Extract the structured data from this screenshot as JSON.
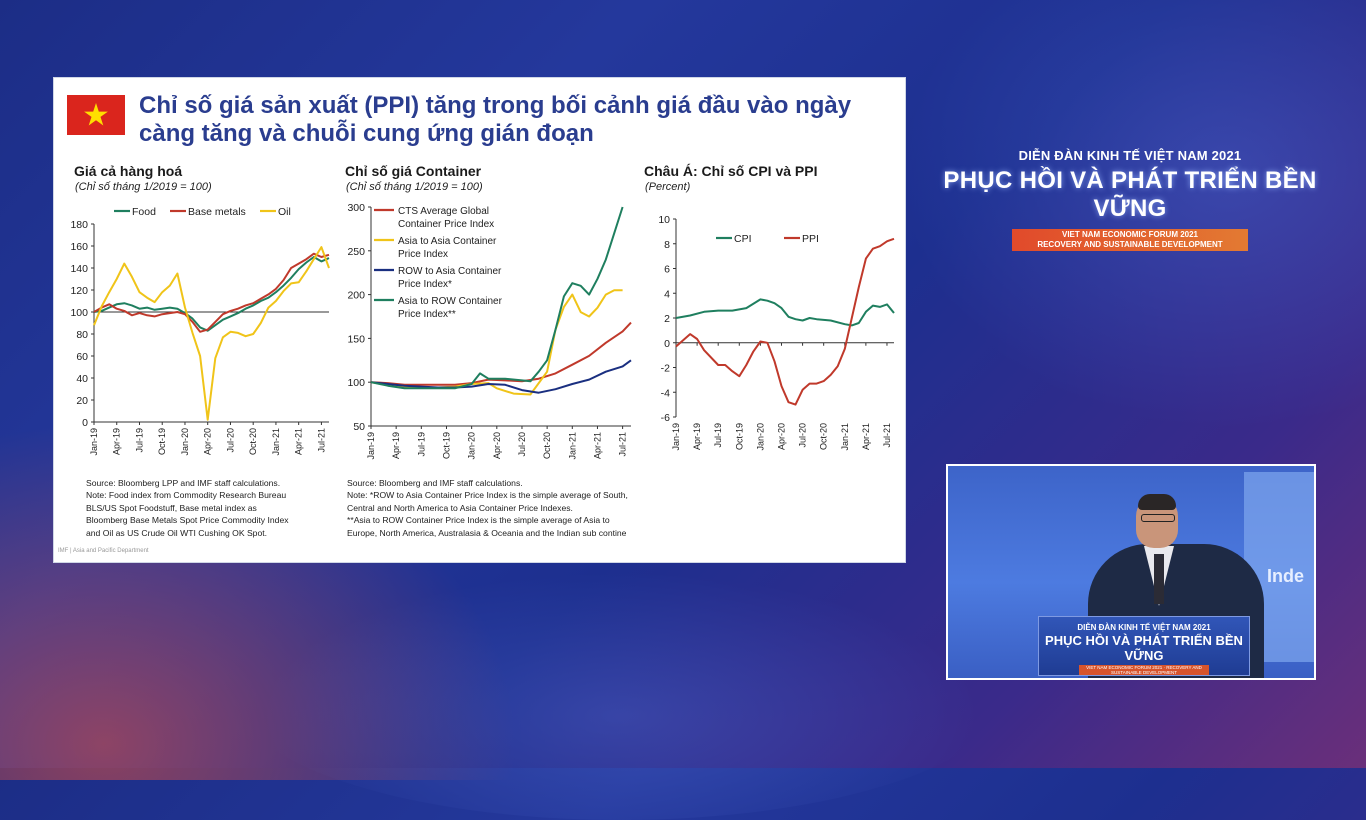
{
  "slide": {
    "title": "Chỉ số giá sản xuất (PPI) tăng trong bối cảnh giá đầu vào ngày càng tăng và chuỗi cung ứng gián đoạn",
    "flag_icon": "vietnam-flag-icon",
    "footer_note": "IMF | Asia and Pacific Department"
  },
  "panels": {
    "commodities": {
      "title": "Giá cả hàng hoá",
      "subtitle": "(Chỉ số tháng 1/2019 = 100)",
      "note": "Source: Bloomberg LPP and IMF staff calculations.\nNote: Food index from Commodity Research Bureau\nBLS/US Spot Foodstuff, Base metal index as\nBloomberg Base Metals Spot Price Commodity Index\nand Oil as US Crude Oil WTI Cushing OK Spot."
    },
    "container": {
      "title": "Chỉ số giá Container",
      "subtitle": "(Chỉ số tháng 1/2019 = 100)",
      "note": "Source: Bloomberg and IMF staff calculations.\nNote: *ROW to Asia Container Price Index is the simple average of South,\nCentral and North America to Asia Container Price Indexes.\n**Asia to ROW Container Price Index is the simple average of Asia to\nEurope, North America, Australasia & Oceania and the Indian sub contine"
    },
    "asia": {
      "title": "Châu Á: Chỉ số CPI và PPI",
      "subtitle": "(Percent)"
    }
  },
  "chart_data": [
    {
      "type": "line",
      "title": "Giá cả hàng hoá",
      "subtitle": "(Chỉ số tháng 1/2019 = 100)",
      "xlabel": "",
      "ylabel": "",
      "x_ticks": [
        "Jan-19",
        "Apr-19",
        "Jul-19",
        "Oct-19",
        "Jan-20",
        "Apr-20",
        "Jul-20",
        "Oct-20",
        "Jan-21",
        "Apr-21",
        "Jul-21"
      ],
      "ylim": [
        0,
        180
      ],
      "y_ticks": [
        0,
        20,
        40,
        60,
        80,
        100,
        120,
        140,
        160,
        180
      ],
      "reference_line": 100,
      "legend": "top-left",
      "grid": false,
      "series": [
        {
          "name": "Food",
          "color": "#1f7f5f",
          "points": [
            [
              0,
              100
            ],
            [
              1,
              101
            ],
            [
              2,
              104
            ],
            [
              3,
              107
            ],
            [
              4,
              108
            ],
            [
              5,
              106
            ],
            [
              6,
              103
            ],
            [
              7,
              104
            ],
            [
              8,
              102
            ],
            [
              9,
              103
            ],
            [
              10,
              104
            ],
            [
              11,
              103
            ],
            [
              12,
              99
            ],
            [
              13,
              94
            ],
            [
              14,
              86
            ],
            [
              15,
              83
            ],
            [
              16,
              88
            ],
            [
              17,
              93
            ],
            [
              18,
              96
            ],
            [
              19,
              99
            ],
            [
              20,
              103
            ],
            [
              21,
              106
            ],
            [
              22,
              110
            ],
            [
              23,
              113
            ],
            [
              24,
              118
            ],
            [
              25,
              124
            ],
            [
              26,
              131
            ],
            [
              27,
              139
            ],
            [
              28,
              145
            ],
            [
              29,
              150
            ],
            [
              30,
              146
            ],
            [
              31,
              149
            ]
          ]
        },
        {
          "name": "Base metals",
          "color": "#c0392b",
          "points": [
            [
              0,
              100
            ],
            [
              1,
              104
            ],
            [
              2,
              107
            ],
            [
              3,
              103
            ],
            [
              4,
              101
            ],
            [
              5,
              97
            ],
            [
              6,
              99
            ],
            [
              7,
              97
            ],
            [
              8,
              96
            ],
            [
              9,
              98
            ],
            [
              10,
              99
            ],
            [
              11,
              100
            ],
            [
              12,
              98
            ],
            [
              13,
              91
            ],
            [
              14,
              82
            ],
            [
              15,
              84
            ],
            [
              16,
              91
            ],
            [
              17,
              98
            ],
            [
              18,
              101
            ],
            [
              19,
              103
            ],
            [
              20,
              106
            ],
            [
              21,
              108
            ],
            [
              22,
              112
            ],
            [
              23,
              116
            ],
            [
              24,
              121
            ],
            [
              25,
              129
            ],
            [
              26,
              140
            ],
            [
              27,
              144
            ],
            [
              28,
              148
            ],
            [
              29,
              153
            ],
            [
              30,
              150
            ],
            [
              31,
              152
            ]
          ]
        },
        {
          "name": "Oil",
          "color": "#f0c419",
          "points": [
            [
              0,
              88
            ],
            [
              1,
              105
            ],
            [
              2,
              118
            ],
            [
              3,
              130
            ],
            [
              4,
              144
            ],
            [
              5,
              132
            ],
            [
              6,
              118
            ],
            [
              7,
              113
            ],
            [
              8,
              109
            ],
            [
              9,
              118
            ],
            [
              10,
              124
            ],
            [
              11,
              135
            ],
            [
              12,
              104
            ],
            [
              13,
              81
            ],
            [
              14,
              60
            ],
            [
              15,
              2
            ],
            [
              16,
              58
            ],
            [
              17,
              77
            ],
            [
              18,
              82
            ],
            [
              19,
              81
            ],
            [
              20,
              78
            ],
            [
              21,
              80
            ],
            [
              22,
              90
            ],
            [
              23,
              104
            ],
            [
              24,
              110
            ],
            [
              25,
              119
            ],
            [
              26,
              126
            ],
            [
              27,
              127
            ],
            [
              28,
              137
            ],
            [
              29,
              148
            ],
            [
              30,
              159
            ],
            [
              31,
              140
            ]
          ]
        }
      ]
    },
    {
      "type": "line",
      "title": "Chỉ số giá Container",
      "subtitle": "(Chỉ số tháng 1/2019 = 100)",
      "xlabel": "",
      "ylabel": "",
      "x_ticks": [
        "Jan-19",
        "Apr-19",
        "Jul-19",
        "Oct-19",
        "Jan-20",
        "Apr-20",
        "Jul-20",
        "Oct-20",
        "Jan-21",
        "Apr-21",
        "Jul-21"
      ],
      "ylim": [
        50,
        300
      ],
      "y_ticks": [
        50,
        100,
        150,
        200,
        250,
        300
      ],
      "legend": "top-left",
      "grid": false,
      "series": [
        {
          "name": "CTS Average Global Container Price Index",
          "color": "#c0392b",
          "points": [
            [
              0,
              100
            ],
            [
              2,
              99
            ],
            [
              4,
              97
            ],
            [
              6,
              97
            ],
            [
              8,
              97
            ],
            [
              10,
              97
            ],
            [
              12,
              99
            ],
            [
              14,
              103
            ],
            [
              16,
              102
            ],
            [
              18,
              101
            ],
            [
              20,
              104
            ],
            [
              22,
              110
            ],
            [
              24,
              120
            ],
            [
              26,
              130
            ],
            [
              28,
              145
            ],
            [
              30,
              158
            ],
            [
              31,
              168
            ]
          ]
        },
        {
          "name": "Asia to Asia Container Price Index",
          "color": "#f0c419",
          "points": [
            [
              0,
              100
            ],
            [
              2,
              97
            ],
            [
              4,
              95
            ],
            [
              6,
              94
            ],
            [
              8,
              94
            ],
            [
              10,
              95
            ],
            [
              12,
              98
            ],
            [
              14,
              99
            ],
            [
              15,
              93
            ],
            [
              17,
              87
            ],
            [
              19,
              86
            ],
            [
              21,
              112
            ],
            [
              22,
              160
            ],
            [
              23,
              186
            ],
            [
              24,
              200
            ],
            [
              25,
              180
            ],
            [
              26,
              175
            ],
            [
              27,
              185
            ],
            [
              28,
              200
            ],
            [
              29,
              205
            ],
            [
              30,
              205
            ]
          ]
        },
        {
          "name": "ROW to Asia Container Price Index*",
          "color": "#1a2f80",
          "points": [
            [
              0,
              100
            ],
            [
              2,
              98
            ],
            [
              4,
              96
            ],
            [
              6,
              95
            ],
            [
              8,
              94
            ],
            [
              10,
              94
            ],
            [
              12,
              95
            ],
            [
              14,
              98
            ],
            [
              16,
              97
            ],
            [
              18,
              91
            ],
            [
              20,
              88
            ],
            [
              22,
              92
            ],
            [
              24,
              98
            ],
            [
              26,
              103
            ],
            [
              28,
              112
            ],
            [
              30,
              118
            ],
            [
              31,
              125
            ]
          ]
        },
        {
          "name": "Asia to ROW Container Price Index**",
          "color": "#1f7f5f",
          "points": [
            [
              0,
              100
            ],
            [
              2,
              96
            ],
            [
              4,
              93
            ],
            [
              6,
              93
            ],
            [
              8,
              93
            ],
            [
              10,
              93
            ],
            [
              12,
              98
            ],
            [
              13,
              110
            ],
            [
              14,
              104
            ],
            [
              16,
              104
            ],
            [
              18,
              102
            ],
            [
              19,
              101
            ],
            [
              20,
              112
            ],
            [
              21,
              125
            ],
            [
              22,
              160
            ],
            [
              23,
              198
            ],
            [
              24,
              213
            ],
            [
              25,
              210
            ],
            [
              26,
              200
            ],
            [
              27,
              218
            ],
            [
              28,
              240
            ],
            [
              29,
              270
            ],
            [
              30,
              300
            ]
          ]
        }
      ]
    },
    {
      "type": "line",
      "title": "Châu Á: Chỉ số CPI và PPI",
      "subtitle": "(Percent)",
      "xlabel": "",
      "ylabel": "",
      "x_ticks": [
        "Jan-19",
        "Apr-19",
        "Jul-19",
        "Oct-19",
        "Jan-20",
        "Apr-20",
        "Jul-20",
        "Oct-20",
        "Jan-21",
        "Apr-21",
        "Jul-21"
      ],
      "ylim": [
        -6,
        10
      ],
      "y_ticks": [
        -6,
        -4,
        -2,
        0,
        2,
        4,
        6,
        8,
        10
      ],
      "legend": "top-left",
      "grid": false,
      "series": [
        {
          "name": "CPI",
          "color": "#1f7f5f",
          "points": [
            [
              0,
              2.0
            ],
            [
              2,
              2.2
            ],
            [
              4,
              2.5
            ],
            [
              6,
              2.6
            ],
            [
              8,
              2.6
            ],
            [
              10,
              2.8
            ],
            [
              12,
              3.5
            ],
            [
              13,
              3.4
            ],
            [
              14,
              3.2
            ],
            [
              15,
              2.8
            ],
            [
              16,
              2.1
            ],
            [
              17,
              1.9
            ],
            [
              18,
              1.8
            ],
            [
              19,
              2.0
            ],
            [
              20,
              1.9
            ],
            [
              22,
              1.8
            ],
            [
              24,
              1.5
            ],
            [
              25,
              1.4
            ],
            [
              26,
              1.6
            ],
            [
              27,
              2.5
            ],
            [
              28,
              3.0
            ],
            [
              29,
              2.9
            ],
            [
              30,
              3.1
            ],
            [
              31,
              2.4
            ]
          ]
        },
        {
          "name": "PPI",
          "color": "#c0392b",
          "points": [
            [
              0,
              -0.3
            ],
            [
              2,
              0.7
            ],
            [
              3,
              0.3
            ],
            [
              4,
              -0.6
            ],
            [
              6,
              -1.8
            ],
            [
              7,
              -1.8
            ],
            [
              8,
              -2.3
            ],
            [
              9,
              -2.7
            ],
            [
              10,
              -1.8
            ],
            [
              11,
              -0.7
            ],
            [
              12,
              0.1
            ],
            [
              13,
              0.0
            ],
            [
              14,
              -1.5
            ],
            [
              15,
              -3.5
            ],
            [
              16,
              -4.8
            ],
            [
              17,
              -5.0
            ],
            [
              18,
              -3.8
            ],
            [
              19,
              -3.3
            ],
            [
              20,
              -3.3
            ],
            [
              21,
              -3.1
            ],
            [
              22,
              -2.6
            ],
            [
              23,
              -1.9
            ],
            [
              24,
              -0.5
            ],
            [
              25,
              2.0
            ],
            [
              26,
              4.5
            ],
            [
              27,
              6.8
            ],
            [
              28,
              7.6
            ],
            [
              29,
              7.8
            ],
            [
              30,
              8.2
            ],
            [
              31,
              8.4
            ]
          ]
        }
      ]
    }
  ],
  "forum": {
    "top_title": "DIỄN ĐÀN KINH TẾ VIỆT NAM 2021",
    "main_title": "PHỤC HỒI VÀ PHÁT TRIỂN BỀN VỮNG",
    "en_line1": "VIET NAM ECONOMIC FORUM 2021",
    "en_line2": "RECOVERY AND SUSTAINABLE DEVELOPMENT"
  },
  "video": {
    "podium_top": "DIỄN ĐÀN KINH TẾ VIỆT NAM 2021",
    "podium_main": "PHỤC HỒI VÀ PHÁT TRIỂN BỀN VỮNG",
    "podium_small": "VIET NAM ECONOMIC FORUM 2021 · RECOVERY AND SUSTAINABLE DEVELOPMENT",
    "screen_text": "Inde"
  }
}
